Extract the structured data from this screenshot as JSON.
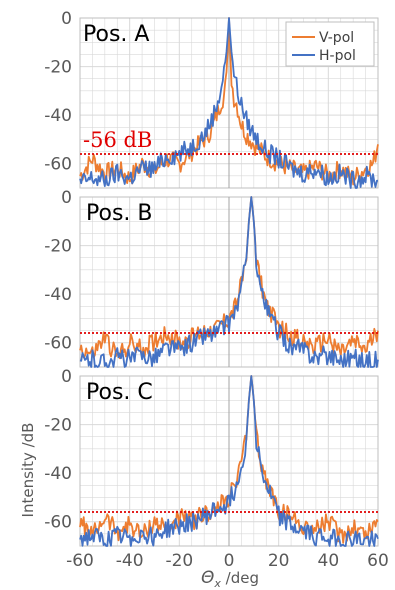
{
  "chart_data": {
    "type": "line",
    "xlabel_symbol": "Θ",
    "xlabel_sub": "x",
    "xlabel_rest": " /deg",
    "ylabel": "Intensity /dB",
    "xlim": [
      -60,
      60
    ],
    "ylim": [
      -70,
      0
    ],
    "xticks": [
      -60,
      -40,
      -20,
      0,
      20,
      40,
      60
    ],
    "yticks": [
      0,
      -20,
      -40,
      -60
    ],
    "grid": true,
    "legend": {
      "placement": "top-right",
      "entries": [
        "V-pol",
        "H-pol"
      ]
    },
    "colors": {
      "V-pol": "#ed7d31",
      "H-pol": "#4472c4",
      "reference": "#e00000",
      "grid": "#d9d9d9",
      "axis": "#bfbfbf"
    },
    "reference_line": {
      "value": -56,
      "label": "-56 dB"
    },
    "panels": [
      {
        "label": "Pos. A",
        "series": [
          {
            "name": "V-pol",
            "x": [
              -60,
              -55,
              -50,
              -45,
              -40,
              -35,
              -30,
              -25,
              -20,
              -15,
              -10,
              -7,
              -5,
              -3,
              -2,
              -1,
              0,
              1,
              2,
              3,
              5,
              7,
              10,
              15,
              20,
              25,
              30,
              35,
              40,
              45,
              50,
              55,
              58,
              60
            ],
            "y": [
              -65,
              -58,
              -64,
              -62,
              -66,
              -60,
              -63,
              -58,
              -60,
              -55,
              -50,
              -46,
              -40,
              -34,
              -32,
              -25,
              0,
              -25,
              -33,
              -35,
              -44,
              -48,
              -52,
              -57,
              -60,
              -62,
              -64,
              -61,
              -65,
              -62,
              -66,
              -62,
              -60,
              -52
            ]
          },
          {
            "name": "H-pol",
            "x": [
              -60,
              -55,
              -50,
              -45,
              -40,
              -35,
              -30,
              -25,
              -20,
              -15,
              -10,
              -7,
              -5,
              -3,
              -2,
              -1,
              0,
              1,
              2,
              3,
              5,
              7,
              10,
              15,
              20,
              25,
              30,
              35,
              40,
              45,
              50,
              55,
              60
            ],
            "y": [
              -68,
              -66,
              -67,
              -64,
              -66,
              -62,
              -62,
              -57,
              -56,
              -53,
              -48,
              -42,
              -36,
              -28,
              -22,
              -14,
              0,
              -14,
              -22,
              -28,
              -36,
              -42,
              -48,
              -55,
              -58,
              -62,
              -64,
              -62,
              -66,
              -64,
              -67,
              -65,
              -67
            ]
          }
        ]
      },
      {
        "label": "Pos. B",
        "series": [
          {
            "name": "V-pol",
            "x": [
              -60,
              -55,
              -50,
              -45,
              -40,
              -35,
              -30,
              -25,
              -20,
              -15,
              -10,
              -5,
              0,
              3,
              5,
              7,
              8,
              9,
              10,
              11,
              13,
              15,
              18,
              20,
              25,
              30,
              35,
              40,
              45,
              50,
              55,
              60
            ],
            "y": [
              -62,
              -65,
              -58,
              -66,
              -60,
              -63,
              -59,
              -56,
              -60,
              -58,
              -55,
              -54,
              -50,
              -44,
              -36,
              -25,
              -10,
              0,
              -10,
              -25,
              -36,
              -44,
              -50,
              -54,
              -57,
              -60,
              -62,
              -58,
              -64,
              -60,
              -63,
              -55
            ]
          },
          {
            "name": "H-pol",
            "x": [
              -60,
              -55,
              -50,
              -45,
              -40,
              -35,
              -30,
              -25,
              -20,
              -15,
              -10,
              -5,
              0,
              3,
              5,
              7,
              8,
              9,
              10,
              11,
              13,
              15,
              18,
              20,
              25,
              30,
              35,
              40,
              45,
              50,
              55,
              60
            ],
            "y": [
              -68,
              -67,
              -68,
              -66,
              -67,
              -65,
              -66,
              -62,
              -63,
              -60,
              -57,
              -56,
              -52,
              -46,
              -38,
              -26,
              -10,
              0,
              -10,
              -26,
              -38,
              -46,
              -52,
              -56,
              -62,
              -63,
              -66,
              -65,
              -67,
              -66,
              -68,
              -67
            ]
          }
        ]
      },
      {
        "label": "Pos. C",
        "series": [
          {
            "name": "V-pol",
            "x": [
              -60,
              -55,
              -50,
              -45,
              -40,
              -35,
              -30,
              -25,
              -20,
              -15,
              -10,
              -5,
              0,
              3,
              5,
              7,
              8,
              9,
              10,
              11,
              13,
              15,
              18,
              20,
              25,
              30,
              35,
              40,
              45,
              50,
              55,
              60
            ],
            "y": [
              -60,
              -66,
              -58,
              -64,
              -61,
              -66,
              -60,
              -63,
              -58,
              -60,
              -57,
              -55,
              -50,
              -44,
              -36,
              -25,
              -10,
              0,
              -10,
              -25,
              -36,
              -44,
              -50,
              -56,
              -58,
              -62,
              -63,
              -60,
              -66,
              -62,
              -65,
              -60
            ]
          },
          {
            "name": "H-pol",
            "x": [
              -60,
              -55,
              -50,
              -45,
              -40,
              -35,
              -30,
              -25,
              -20,
              -15,
              -10,
              -5,
              0,
              3,
              5,
              7,
              8,
              9,
              10,
              11,
              13,
              15,
              18,
              20,
              25,
              30,
              35,
              40,
              45,
              50,
              55,
              60
            ],
            "y": [
              -67,
              -66,
              -68,
              -66,
              -67,
              -65,
              -66,
              -63,
              -62,
              -60,
              -58,
              -55,
              -52,
              -45,
              -38,
              -26,
              -10,
              0,
              -10,
              -26,
              -38,
              -45,
              -52,
              -57,
              -62,
              -64,
              -66,
              -66,
              -68,
              -67,
              -68,
              -67
            ]
          }
        ]
      }
    ]
  }
}
